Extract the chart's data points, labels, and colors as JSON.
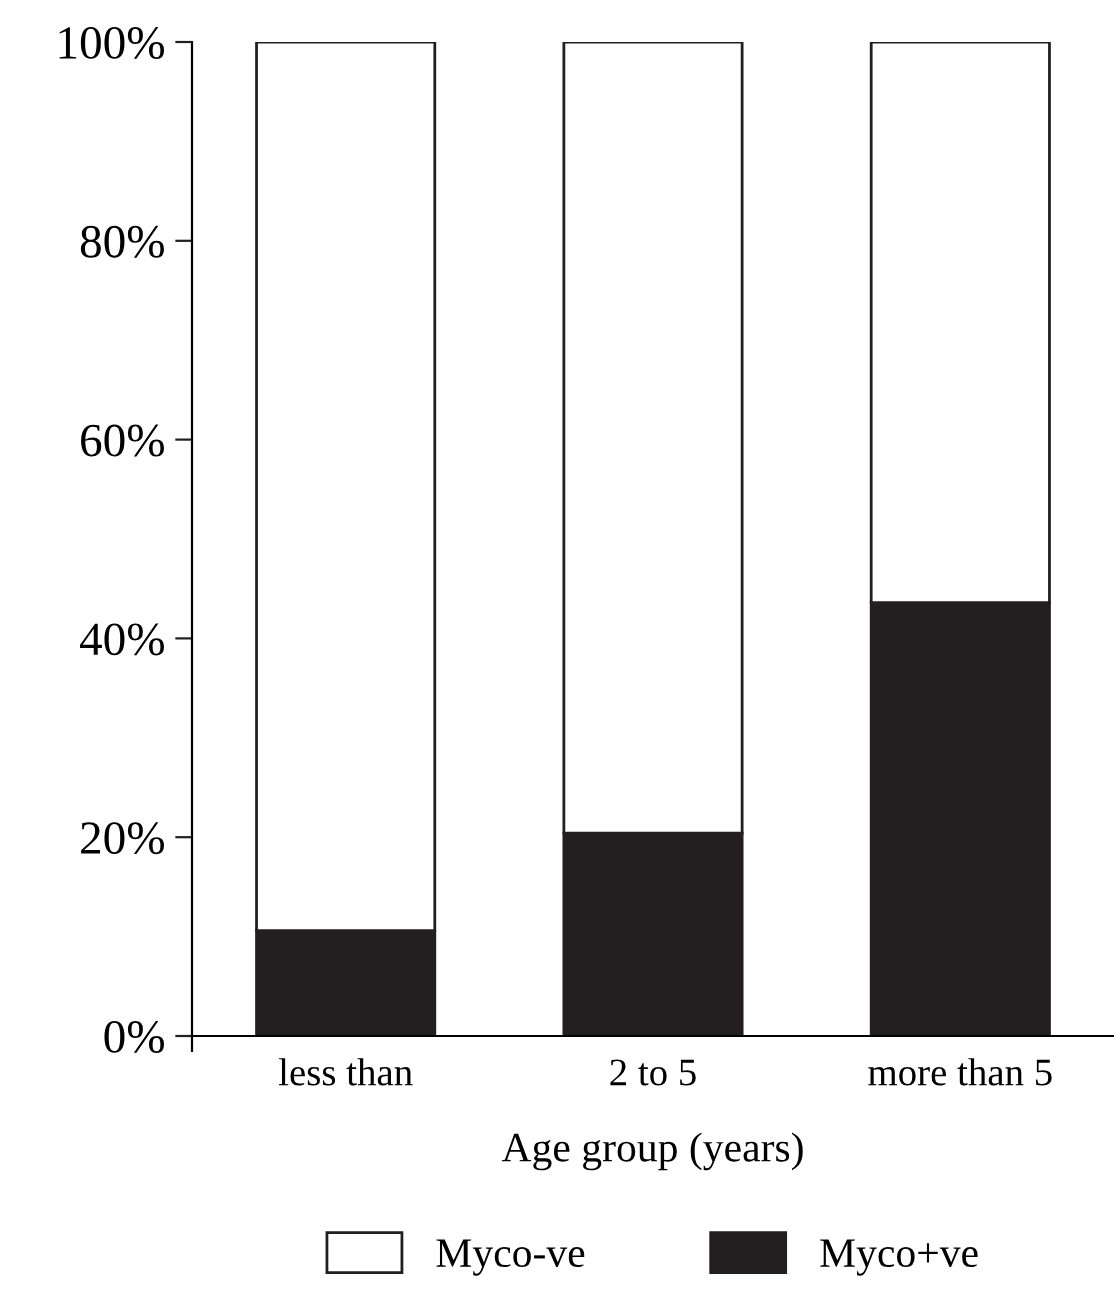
{
  "chart_data": {
    "type": "bar",
    "stacked": true,
    "xlabel": "Age group (years)",
    "categories": [
      "less than",
      "2 to 5",
      "more than 5"
    ],
    "series": [
      {
        "name": "Myco+ve",
        "color": "#231f20",
        "values": [
          10.6,
          20.4,
          43.6
        ]
      },
      {
        "name": "Myco-ve",
        "color": "#ffffff",
        "values": [
          89.4,
          79.6,
          56.4
        ]
      }
    ],
    "ylim": [
      0,
      100
    ],
    "yticks": [
      {
        "value": 0,
        "label": "0%"
      },
      {
        "value": 20,
        "label": "20%"
      },
      {
        "value": 40,
        "label": "40%"
      },
      {
        "value": 60,
        "label": "60%"
      },
      {
        "value": 80,
        "label": "80%"
      },
      {
        "value": 100,
        "label": "100%"
      }
    ],
    "grid": false,
    "legend": "bottom"
  }
}
